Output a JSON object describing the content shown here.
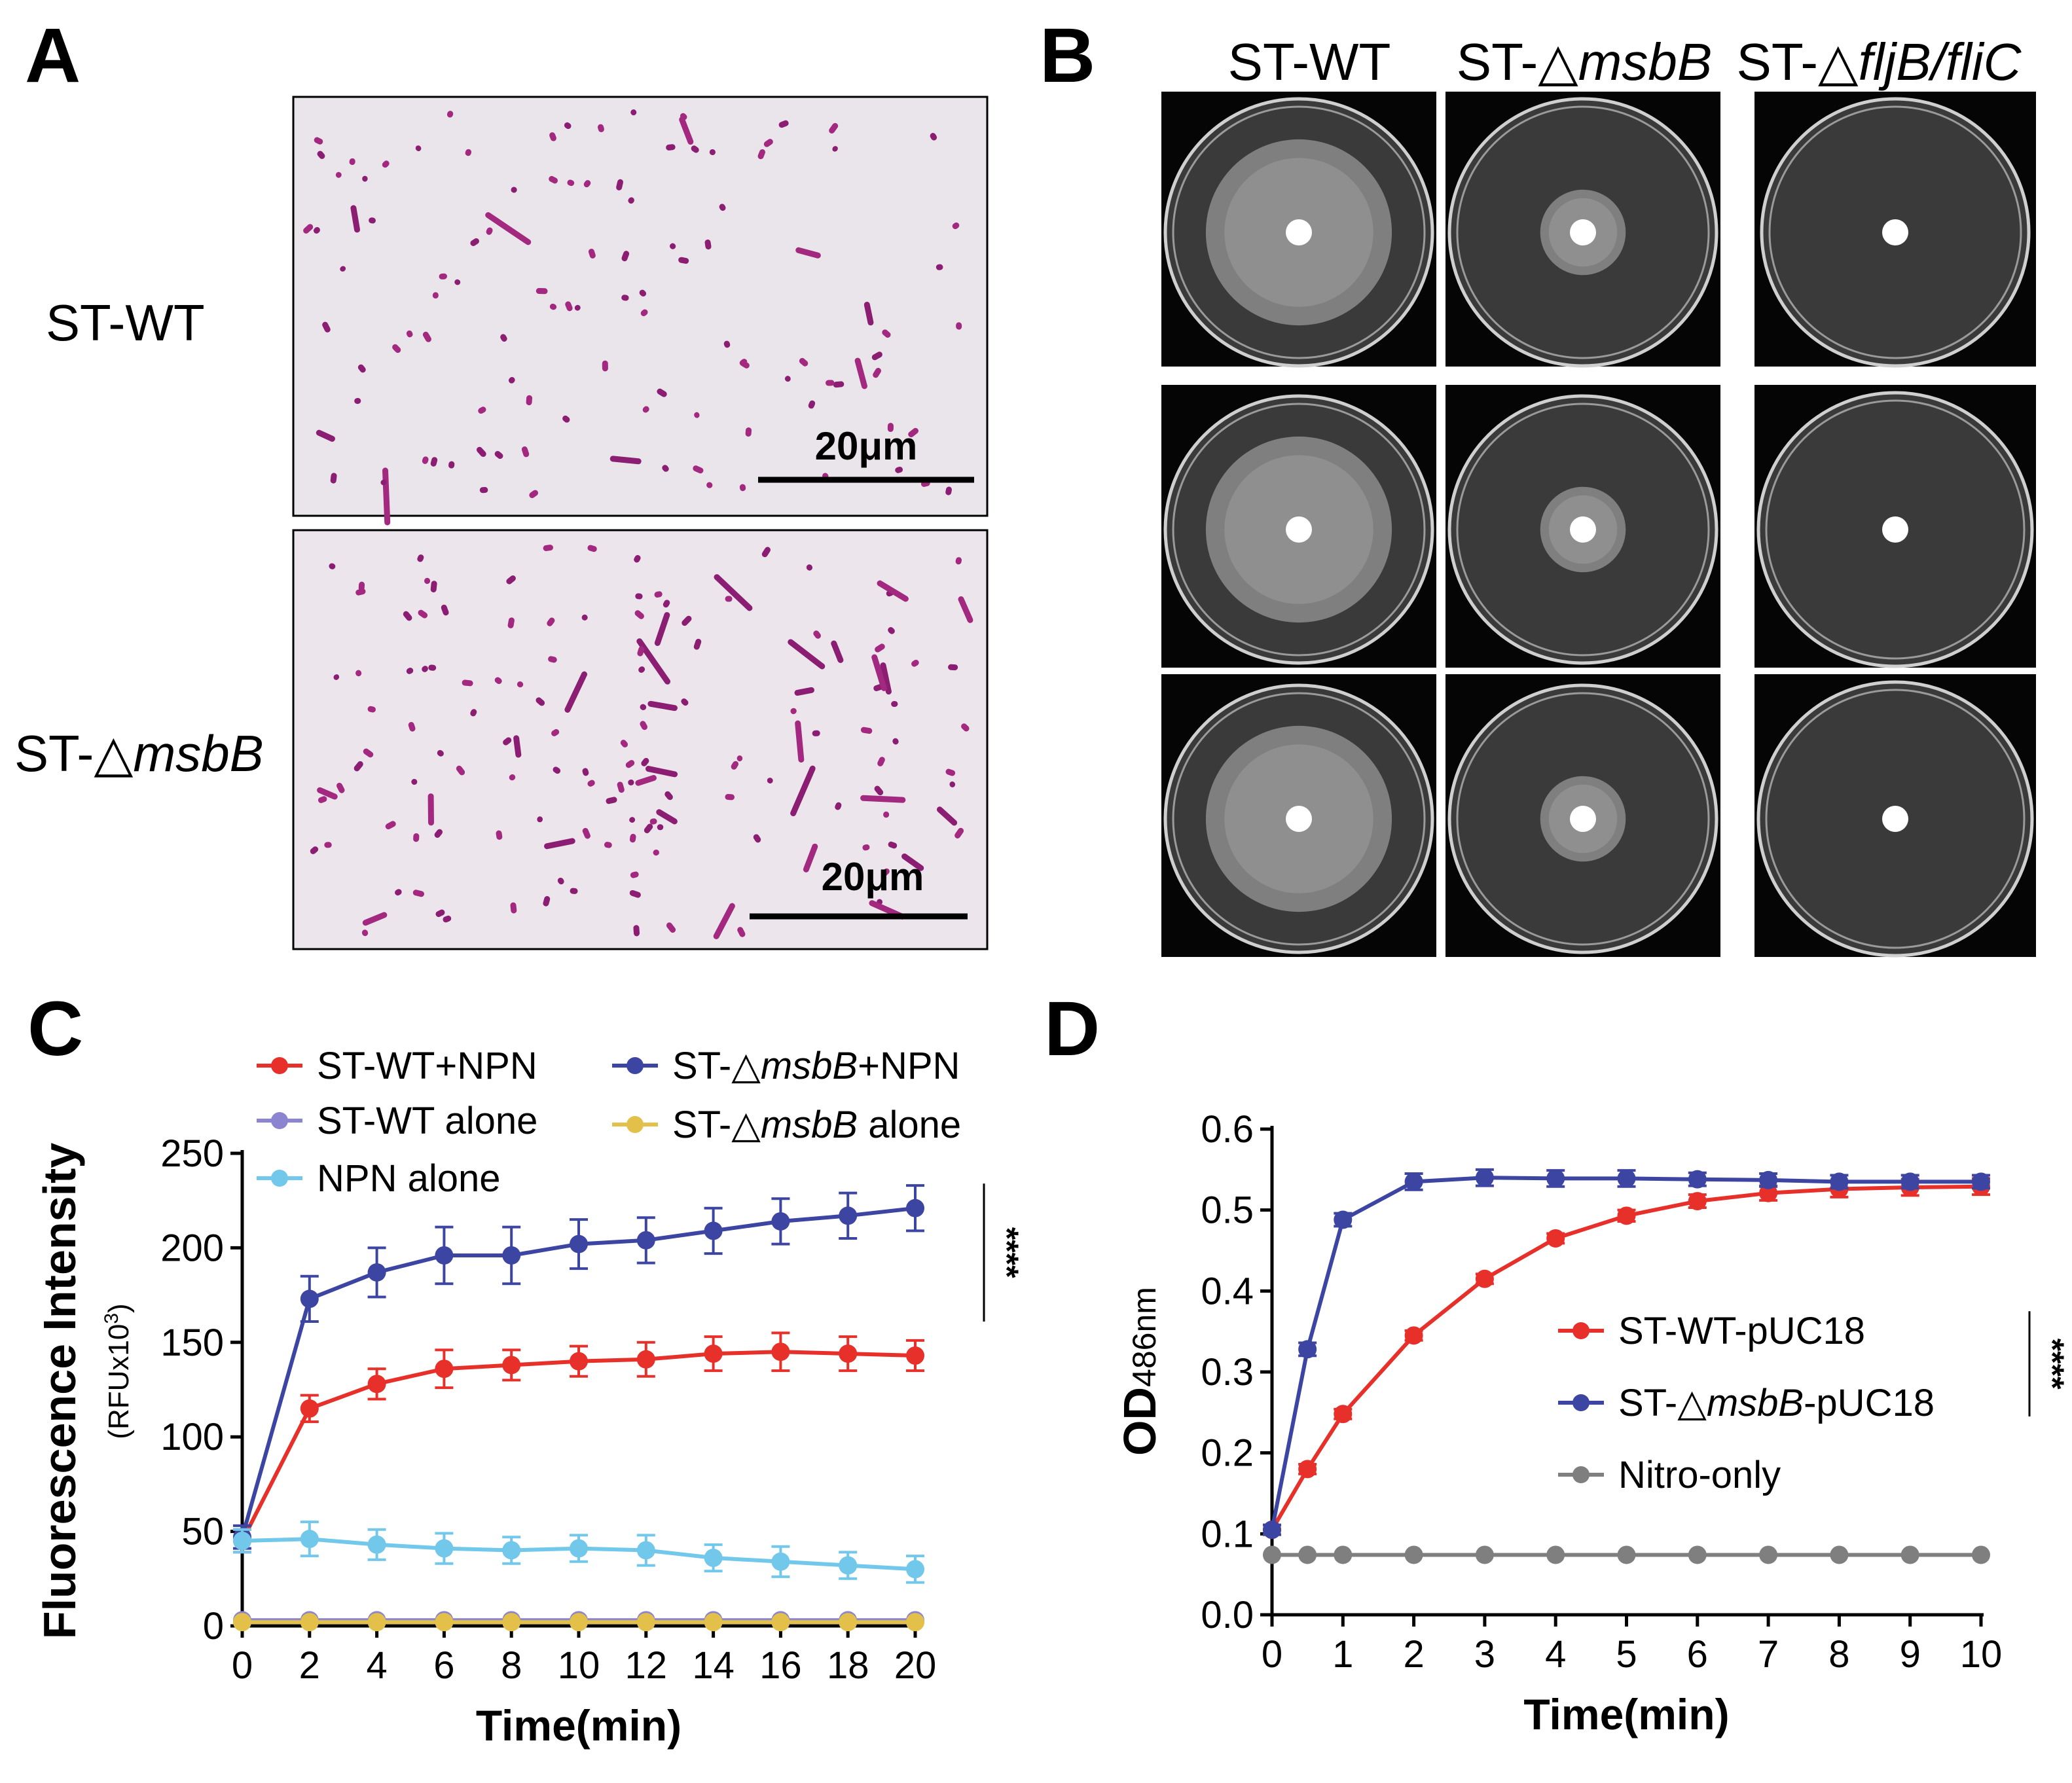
{
  "panels": {
    "A": {
      "label": "A",
      "rows": [
        {
          "label_prefix": "ST-WT",
          "label_italic": "",
          "scale_bar": "20μm"
        },
        {
          "label_prefix": "ST-△",
          "label_italic": "msbB",
          "scale_bar": "20μm"
        }
      ]
    },
    "B": {
      "label": "B",
      "columns": [
        {
          "prefix": "ST-WT",
          "italic": ""
        },
        {
          "prefix": "ST-△",
          "italic": "msbB"
        },
        {
          "prefix": "ST-△",
          "italic": "fljB/fliC"
        }
      ],
      "halo_relative_size": [
        0.74,
        0.34,
        0.1
      ]
    },
    "C": {
      "label": "C"
    },
    "D": {
      "label": "D"
    }
  },
  "chart_data": [
    {
      "panel": "C",
      "type": "line",
      "xlabel": "Time(min)",
      "ylabel": "Fluorescence Intensity",
      "ylabel_sub": "(RFUx10",
      "ylabel_sub_sup": "3",
      "ylabel_sub_end": ")",
      "xlim": [
        0,
        20
      ],
      "ylim": [
        0,
        250
      ],
      "xticks": [
        0,
        2,
        4,
        6,
        8,
        10,
        12,
        14,
        16,
        18,
        20
      ],
      "yticks": [
        0,
        50,
        100,
        150,
        200,
        250
      ],
      "x": [
        0,
        2,
        4,
        6,
        8,
        10,
        12,
        14,
        16,
        18,
        20
      ],
      "significance": "****",
      "series": [
        {
          "name_prefix": "ST-WT+NPN",
          "name_italic": "",
          "name_suffix": "",
          "color": "#e8302a",
          "values": [
            45,
            115,
            128,
            136,
            138,
            140,
            141,
            144,
            145,
            144,
            143
          ],
          "errors": [
            6,
            7,
            8,
            10,
            8,
            8,
            9,
            9,
            10,
            9,
            8
          ]
        },
        {
          "name_prefix": "ST-△",
          "name_italic": "msbB",
          "name_suffix": "+NPN",
          "color": "#3d45a3",
          "values": [
            47,
            173,
            187,
            196,
            196,
            202,
            204,
            209,
            214,
            217,
            221
          ],
          "errors": [
            6,
            12,
            13,
            15,
            15,
            13,
            12,
            12,
            12,
            12,
            12
          ]
        },
        {
          "name_prefix": "ST-WT alone",
          "name_italic": "",
          "name_suffix": "",
          "color": "#8b84d0",
          "values": [
            3,
            3,
            3,
            3,
            3,
            3,
            3,
            3,
            3,
            3,
            3
          ],
          "errors": [
            0,
            0,
            0,
            0,
            0,
            0,
            0,
            0,
            0,
            0,
            0
          ]
        },
        {
          "name_prefix": "ST-△",
          "name_italic": "msbB",
          "name_suffix": " alone",
          "color": "#e3c04a",
          "values": [
            2,
            2,
            2,
            2,
            2,
            2,
            2,
            2,
            2,
            2,
            2
          ],
          "errors": [
            0,
            0,
            0,
            0,
            0,
            0,
            0,
            0,
            0,
            0,
            0
          ]
        },
        {
          "name_prefix": "NPN alone",
          "name_italic": "",
          "name_suffix": "",
          "color": "#72c8ea",
          "values": [
            45,
            46,
            43,
            41,
            40,
            41,
            40,
            36,
            34,
            32,
            30
          ],
          "errors": [
            6,
            9,
            8,
            8,
            7,
            7,
            8,
            7,
            8,
            7,
            7
          ]
        }
      ]
    },
    {
      "panel": "D",
      "type": "line",
      "xlabel": "Time(min)",
      "ylabel_main": "OD",
      "ylabel_sub": "486nm",
      "xlim": [
        0,
        10
      ],
      "ylim": [
        0,
        0.6
      ],
      "xticks": [
        0,
        1,
        2,
        3,
        4,
        5,
        6,
        7,
        8,
        9,
        10
      ],
      "yticks": [
        "0.0",
        "0.1",
        "0.2",
        "0.3",
        "0.4",
        "0.5",
        "0.6"
      ],
      "significance": "****",
      "series": [
        {
          "name_prefix": "ST-WT-pUC18",
          "name_italic": "",
          "name_suffix": "",
          "color": "#e8302a",
          "x": [
            0,
            0.5,
            1,
            2,
            3,
            4,
            5,
            6,
            7,
            8,
            9,
            10
          ],
          "values": [
            0.105,
            0.18,
            0.248,
            0.345,
            0.415,
            0.465,
            0.493,
            0.511,
            0.521,
            0.526,
            0.528,
            0.529
          ],
          "errors": [
            0.006,
            0.006,
            0.006,
            0.006,
            0.006,
            0.006,
            0.007,
            0.008,
            0.009,
            0.01,
            0.01,
            0.01
          ]
        },
        {
          "name_prefix": "ST-△",
          "name_italic": "msbB",
          "name_suffix": "-pUC18",
          "color": "#3d45a3",
          "x": [
            0,
            0.5,
            1,
            2,
            3,
            4,
            5,
            6,
            7,
            8,
            9,
            10
          ],
          "values": [
            0.105,
            0.328,
            0.488,
            0.535,
            0.54,
            0.539,
            0.539,
            0.538,
            0.537,
            0.535,
            0.535,
            0.535
          ],
          "errors": [
            0.006,
            0.008,
            0.008,
            0.01,
            0.01,
            0.01,
            0.01,
            0.008,
            0.008,
            0.008,
            0.008,
            0.008
          ]
        },
        {
          "name_prefix": "Nitro-only",
          "name_italic": "",
          "name_suffix": "",
          "color": "#7f7f7f",
          "x": [
            0,
            0.5,
            1,
            2,
            3,
            4,
            5,
            6,
            7,
            8,
            9,
            10
          ],
          "values": [
            0.074,
            0.074,
            0.074,
            0.074,
            0.074,
            0.074,
            0.074,
            0.074,
            0.074,
            0.074,
            0.074,
            0.074
          ],
          "errors": [
            0,
            0,
            0,
            0,
            0,
            0,
            0,
            0,
            0,
            0,
            0,
            0
          ]
        }
      ]
    }
  ]
}
